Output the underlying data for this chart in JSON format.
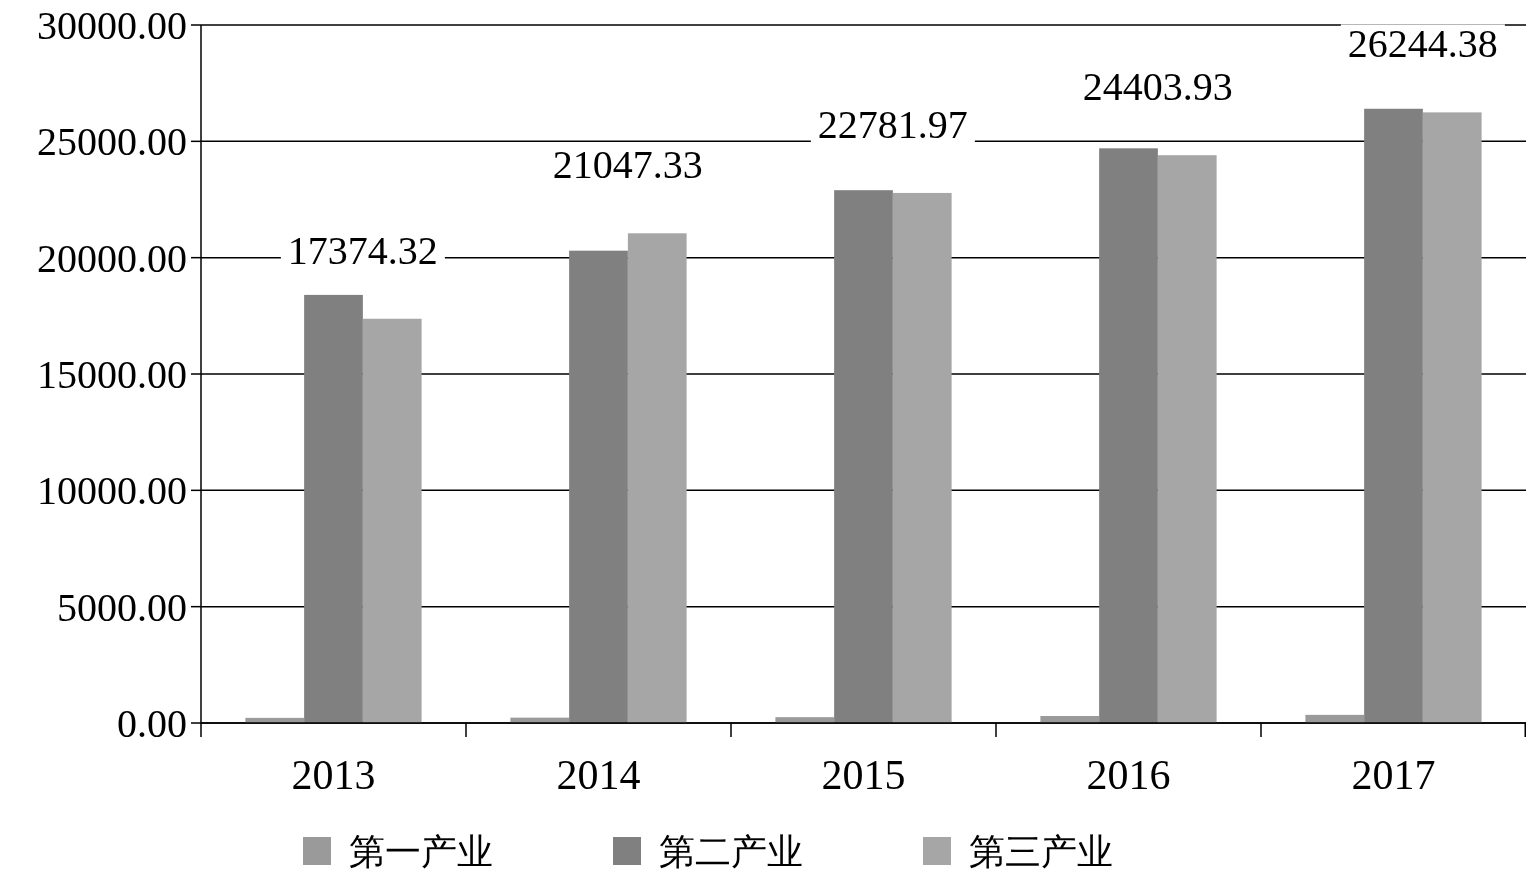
{
  "chart_data": {
    "type": "bar",
    "categories": [
      "2013",
      "2014",
      "2015",
      "2016",
      "2017"
    ],
    "series": [
      {
        "name": "第一产业",
        "color": "#9a9a9a",
        "values": [
          220,
          230,
          250,
          300,
          350
        ]
      },
      {
        "name": "第二产业",
        "color": "#808080",
        "values": [
          18400,
          20300,
          22900,
          24700,
          26400
        ]
      },
      {
        "name": "第三产业",
        "color": "#a6a6a6",
        "values": [
          17374.32,
          21047.33,
          22781.97,
          24403.93,
          26244.38
        ],
        "value_labels": [
          "17374.32",
          "21047.33",
          "22781.97",
          "24403.93",
          "26244.38"
        ]
      }
    ],
    "ylim": [
      0,
      30000
    ],
    "yticks": [
      {
        "value": 0,
        "label": "0.00"
      },
      {
        "value": 5000,
        "label": "5000.00"
      },
      {
        "value": 10000,
        "label": "10000.00"
      },
      {
        "value": 15000,
        "label": "15000.00"
      },
      {
        "value": 20000,
        "label": "20000.00"
      },
      {
        "value": 25000,
        "label": "25000.00"
      },
      {
        "value": 30000,
        "label": "30000.00"
      }
    ],
    "grid": "y",
    "legend": "bottom"
  }
}
